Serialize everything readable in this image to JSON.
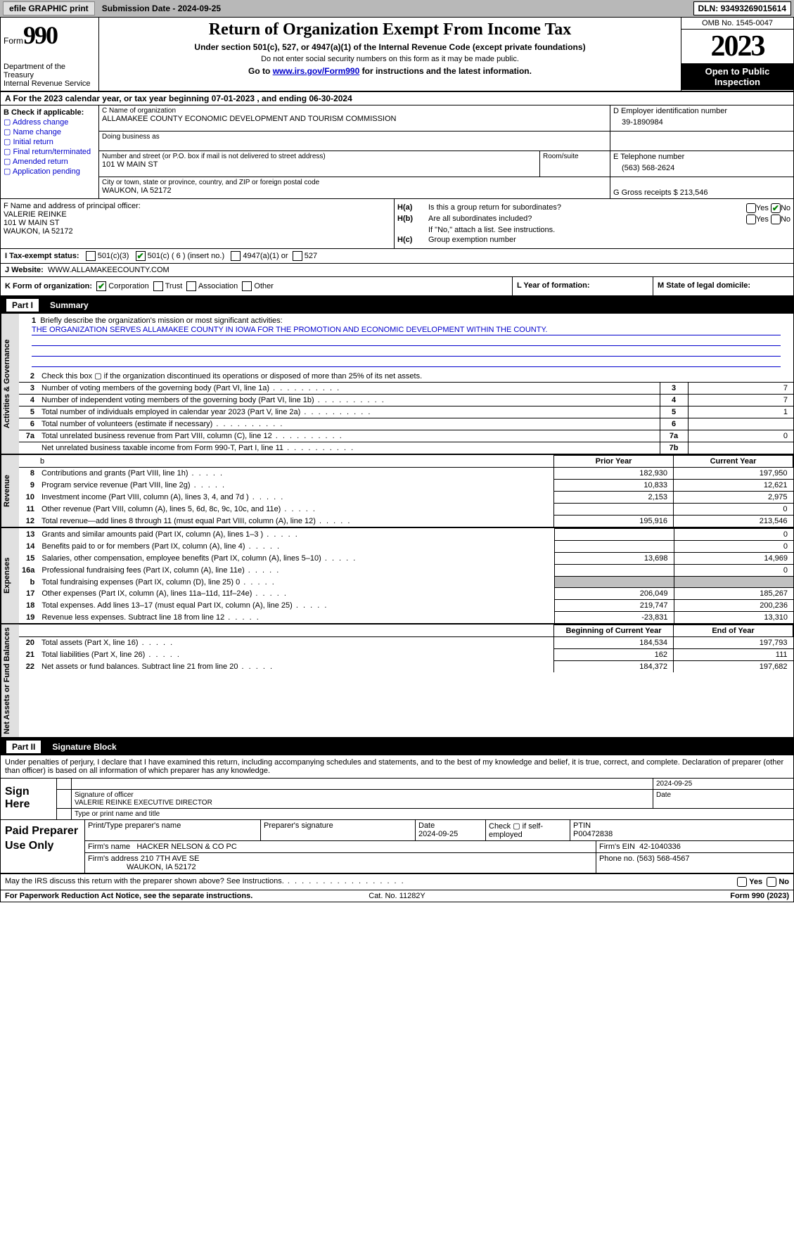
{
  "toolbar": {
    "efile": "efile GRAPHIC print",
    "submission": "Submission Date - 2024-09-25",
    "dln_label": "DLN:",
    "dln": "93493269015614"
  },
  "header": {
    "form_word": "Form",
    "form_num": "990",
    "title": "Return of Organization Exempt From Income Tax",
    "subtitle": "Under section 501(c), 527, or 4947(a)(1) of the Internal Revenue Code (except private foundations)",
    "note": "Do not enter social security numbers on this form as it may be made public.",
    "goto_pre": "Go to ",
    "goto_link": "www.irs.gov/Form990",
    "goto_post": " for instructions and the latest information.",
    "dept": "Department of the Treasury",
    "irs": "Internal Revenue Service",
    "omb": "OMB No. 1545-0047",
    "year": "2023",
    "open": "Open to Public Inspection"
  },
  "lineA": "A For the 2023 calendar year, or tax year beginning 07-01-2023   , and ending 06-30-2024",
  "colB": {
    "hdr": "B Check if applicable:",
    "items": [
      "Address change",
      "Name change",
      "Initial return",
      "Final return/terminated",
      "Amended return",
      "Application pending"
    ]
  },
  "colC": {
    "name_lbl": "C Name of organization",
    "name": "ALLAMAKEE COUNTY ECONOMIC DEVELOPMENT AND TOURISM COMMISSION",
    "dba_lbl": "Doing business as",
    "addr_lbl": "Number and street (or P.O. box if mail is not delivered to street address)",
    "addr": "101 W MAIN ST",
    "room_lbl": "Room/suite",
    "city_lbl": "City or town, state or province, country, and ZIP or foreign postal code",
    "city": "WAUKON, IA  52172"
  },
  "colD": {
    "ein_lbl": "D Employer identification number",
    "ein": "39-1890984",
    "tel_lbl": "E Telephone number",
    "tel": "(563) 568-2624",
    "gr_lbl": "G Gross receipts $",
    "gr": "213,546"
  },
  "officer": {
    "lbl": "F  Name and address of principal officer:",
    "name": "VALERIE REINKE",
    "addr1": "101 W MAIN ST",
    "addr2": "WAUKON, IA  52172"
  },
  "ha": {
    "a_lbl": "H(a)",
    "a_txt": "Is this a group return for subordinates?",
    "b_lbl": "H(b)",
    "b_txt": "Are all subordinates included?",
    "b_note": "If \"No,\" attach a list. See instructions.",
    "c_lbl": "H(c)",
    "c_txt": "Group exemption number"
  },
  "rowI": {
    "lbl": "I  Tax-exempt status:",
    "opt1": "501(c)(3)",
    "opt2_pre": "501(c) (",
    "opt2_num": "6",
    "opt2_post": ") (insert no.)",
    "opt3": "4947(a)(1) or",
    "opt4": "527"
  },
  "rowJ": {
    "lbl": "J  Website:",
    "val": "WWW.ALLAMAKEECOUNTY.COM"
  },
  "rowK": {
    "lbl": "K Form of organization:",
    "o1": "Corporation",
    "o2": "Trust",
    "o3": "Association",
    "o4": "Other"
  },
  "rowL": "L Year of formation:",
  "rowM": "M State of legal domicile:",
  "part1": {
    "num": "Part I",
    "title": "Summary"
  },
  "mission": {
    "n": "1",
    "lbl": "Briefly describe the organization's mission or most significant activities:",
    "txt": "THE ORGANIZATION SERVES ALLAMAKEE COUNTY IN IOWA FOR THE PROMOTION AND ECONOMIC DEVELOPMENT WITHIN THE COUNTY."
  },
  "gov_lines": [
    {
      "n": "2",
      "d": "Check this box ▢ if the organization discontinued its operations or disposed of more than 25% of its net assets.",
      "bn": "",
      "bv": ""
    },
    {
      "n": "3",
      "d": "Number of voting members of the governing body (Part VI, line 1a)",
      "bn": "3",
      "bv": "7"
    },
    {
      "n": "4",
      "d": "Number of independent voting members of the governing body (Part VI, line 1b)",
      "bn": "4",
      "bv": "7"
    },
    {
      "n": "5",
      "d": "Total number of individuals employed in calendar year 2023 (Part V, line 2a)",
      "bn": "5",
      "bv": "1"
    },
    {
      "n": "6",
      "d": "Total number of volunteers (estimate if necessary)",
      "bn": "6",
      "bv": ""
    },
    {
      "n": "7a",
      "d": "Total unrelated business revenue from Part VIII, column (C), line 12",
      "bn": "7a",
      "bv": "0"
    },
    {
      "n": "",
      "d": "Net unrelated business taxable income from Form 990-T, Part I, line 11",
      "bn": "7b",
      "bv": ""
    }
  ],
  "vtabs": {
    "gov": "Activities & Governance",
    "rev": "Revenue",
    "exp": "Expenses",
    "net": "Net Assets or Fund Balances"
  },
  "rev_hdr": {
    "b": "b",
    "py": "Prior Year",
    "cy": "Current Year"
  },
  "rev_lines": [
    {
      "n": "8",
      "d": "Contributions and grants (Part VIII, line 1h)",
      "py": "182,930",
      "cy": "197,950"
    },
    {
      "n": "9",
      "d": "Program service revenue (Part VIII, line 2g)",
      "py": "10,833",
      "cy": "12,621"
    },
    {
      "n": "10",
      "d": "Investment income (Part VIII, column (A), lines 3, 4, and 7d )",
      "py": "2,153",
      "cy": "2,975"
    },
    {
      "n": "11",
      "d": "Other revenue (Part VIII, column (A), lines 5, 6d, 8c, 9c, 10c, and 11e)",
      "py": "",
      "cy": "0"
    },
    {
      "n": "12",
      "d": "Total revenue—add lines 8 through 11 (must equal Part VIII, column (A), line 12)",
      "py": "195,916",
      "cy": "213,546"
    }
  ],
  "exp_lines": [
    {
      "n": "13",
      "d": "Grants and similar amounts paid (Part IX, column (A), lines 1–3 )",
      "py": "",
      "cy": "0"
    },
    {
      "n": "14",
      "d": "Benefits paid to or for members (Part IX, column (A), line 4)",
      "py": "",
      "cy": "0"
    },
    {
      "n": "15",
      "d": "Salaries, other compensation, employee benefits (Part IX, column (A), lines 5–10)",
      "py": "13,698",
      "cy": "14,969"
    },
    {
      "n": "16a",
      "d": "Professional fundraising fees (Part IX, column (A), line 11e)",
      "py": "",
      "cy": "0"
    },
    {
      "n": "b",
      "d": "Total fundraising expenses (Part IX, column (D), line 25) 0",
      "py": "shaded",
      "cy": "shaded"
    },
    {
      "n": "17",
      "d": "Other expenses (Part IX, column (A), lines 11a–11d, 11f–24e)",
      "py": "206,049",
      "cy": "185,267"
    },
    {
      "n": "18",
      "d": "Total expenses. Add lines 13–17 (must equal Part IX, column (A), line 25)",
      "py": "219,747",
      "cy": "200,236"
    },
    {
      "n": "19",
      "d": "Revenue less expenses. Subtract line 18 from line 12",
      "py": "-23,831",
      "cy": "13,310"
    }
  ],
  "net_hdr": {
    "py": "Beginning of Current Year",
    "cy": "End of Year"
  },
  "net_lines": [
    {
      "n": "20",
      "d": "Total assets (Part X, line 16)",
      "py": "184,534",
      "cy": "197,793"
    },
    {
      "n": "21",
      "d": "Total liabilities (Part X, line 26)",
      "py": "162",
      "cy": "111"
    },
    {
      "n": "22",
      "d": "Net assets or fund balances. Subtract line 21 from line 20",
      "py": "184,372",
      "cy": "197,682"
    }
  ],
  "part2": {
    "num": "Part II",
    "title": "Signature Block"
  },
  "sig_intro": "Under penalties of perjury, I declare that I have examined this return, including accompanying schedules and statements, and to the best of my knowledge and belief, it is true, correct, and complete. Declaration of preparer (other than officer) is based on all information of which preparer has any knowledge.",
  "sign": {
    "left": "Sign Here",
    "sig_lbl": "Signature of officer",
    "date_lbl": "Date",
    "date": "2024-09-25",
    "name": "VALERIE REINKE EXECUTIVE DIRECTOR",
    "type_lbl": "Type or print name and title"
  },
  "prep": {
    "left": "Paid Preparer Use Only",
    "h1": "Print/Type preparer's name",
    "h2": "Preparer's signature",
    "h3": "Date",
    "h3v": "2024-09-25",
    "h4": "Check ▢ if self-employed",
    "h5": "PTIN",
    "h5v": "P00472838",
    "firm_lbl": "Firm's name",
    "firm": "HACKER NELSON & CO PC",
    "ein_lbl": "Firm's EIN",
    "ein": "42-1040336",
    "addr_lbl": "Firm's address",
    "addr1": "210 7TH AVE SE",
    "addr2": "WAUKON, IA  52172",
    "ph_lbl": "Phone no.",
    "ph": "(563) 568-4567"
  },
  "footq": "May the IRS discuss this return with the preparer shown above? See Instructions.",
  "footer": {
    "l": "For Paperwork Reduction Act Notice, see the separate instructions.",
    "c": "Cat. No. 11282Y",
    "r": "Form 990 (2023)"
  },
  "yn": {
    "yes": "Yes",
    "no": "No"
  }
}
